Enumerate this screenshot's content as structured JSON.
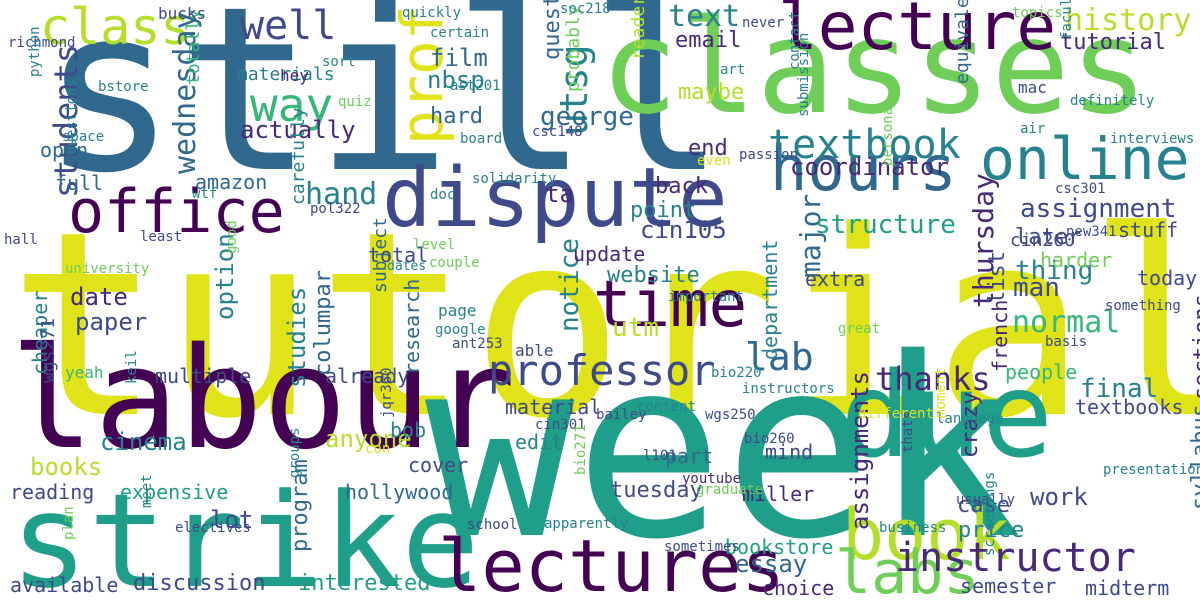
{
  "palette": {
    "c1": "#440154",
    "c2": "#482878",
    "c3": "#3e4a89",
    "c4": "#31688e",
    "c5": "#26828e",
    "c6": "#1f9e89",
    "c7": "#35b779",
    "c8": "#6ece58",
    "c9": "#b5de2b",
    "c10": "#dfe318"
  },
  "words": [
    {
      "text": "tutorials",
      "color": "c10"
    },
    {
      "text": "still",
      "color": "c4"
    },
    {
      "text": "week",
      "color": "c6"
    },
    {
      "text": "classes",
      "color": "c8"
    },
    {
      "text": "labour",
      "color": "c1"
    },
    {
      "text": "strike",
      "color": "c6"
    },
    {
      "text": "due",
      "color": "c6"
    },
    {
      "text": "dispute",
      "color": "c3"
    },
    {
      "text": "lectures",
      "color": "c1"
    },
    {
      "text": "lecture",
      "color": "c1"
    },
    {
      "text": "office",
      "color": "c1"
    },
    {
      "text": "online",
      "color": "c5"
    },
    {
      "text": "hours",
      "color": "c4"
    },
    {
      "text": "time",
      "color": "c1"
    },
    {
      "text": "book",
      "color": "c9"
    },
    {
      "text": "labs",
      "color": "c8"
    },
    {
      "text": "professor",
      "color": "c3"
    },
    {
      "text": "textbook",
      "color": "c5"
    },
    {
      "text": "prof",
      "color": "c10"
    },
    {
      "text": "instructor",
      "color": "c2"
    },
    {
      "text": "class",
      "color": "c9"
    },
    {
      "text": "way",
      "color": "c7"
    },
    {
      "text": "well",
      "color": "c3"
    },
    {
      "text": "utsg",
      "color": "c5"
    },
    {
      "text": "thanks",
      "color": "c2"
    },
    {
      "text": "lab",
      "color": "c4"
    },
    {
      "text": "history",
      "color": "c9"
    },
    {
      "text": "text",
      "color": "c5"
    },
    {
      "text": "students",
      "color": "c3"
    },
    {
      "text": "wednesday",
      "color": "c4"
    },
    {
      "text": "george",
      "color": "c4"
    },
    {
      "text": "email",
      "color": "c2"
    },
    {
      "text": "tutorial",
      "color": "c2"
    },
    {
      "text": "assignment",
      "color": "c3"
    },
    {
      "text": "normal",
      "color": "c7"
    },
    {
      "text": "thursday",
      "color": "c2"
    },
    {
      "text": "major",
      "color": "c4"
    },
    {
      "text": "coordinator",
      "color": "c2"
    },
    {
      "text": "structure",
      "color": "c6"
    },
    {
      "text": "hand",
      "color": "c5"
    },
    {
      "text": "actually",
      "color": "c2"
    },
    {
      "text": "question",
      "color": "c4"
    },
    {
      "text": "maybe",
      "color": "c9"
    },
    {
      "text": "hard",
      "color": "c4"
    },
    {
      "text": "film",
      "color": "c4"
    },
    {
      "text": "nbsp",
      "color": "c5"
    },
    {
      "text": "ta",
      "color": "c2"
    },
    {
      "text": "end",
      "color": "c2"
    },
    {
      "text": "back",
      "color": "c2"
    },
    {
      "text": "point",
      "color": "c5"
    },
    {
      "text": "notice",
      "color": "c5"
    },
    {
      "text": "cin105",
      "color": "c3"
    },
    {
      "text": "website",
      "color": "c5"
    },
    {
      "text": "utm",
      "color": "c9"
    },
    {
      "text": "date",
      "color": "c2"
    },
    {
      "text": "paper",
      "color": "c3"
    },
    {
      "text": "option",
      "color": "c5"
    },
    {
      "text": "studies",
      "color": "c5"
    },
    {
      "text": "columpar",
      "color": "c4"
    },
    {
      "text": "anyone",
      "color": "c9"
    },
    {
      "text": "cinema",
      "color": "c5"
    },
    {
      "text": "books",
      "color": "c9"
    },
    {
      "text": "final",
      "color": "c5"
    },
    {
      "text": "thing",
      "color": "c5"
    },
    {
      "text": "man",
      "color": "c3"
    },
    {
      "text": "later",
      "color": "c3"
    },
    {
      "text": "list",
      "color": "c3"
    },
    {
      "text": "work",
      "color": "c3"
    },
    {
      "text": "tuesday",
      "color": "c3"
    },
    {
      "text": "essay",
      "color": "c4"
    },
    {
      "text": "program",
      "color": "c4"
    },
    {
      "text": "lot",
      "color": "c3"
    },
    {
      "text": "discussion",
      "color": "c3"
    },
    {
      "text": "interested",
      "color": "c6"
    },
    {
      "text": "assignments",
      "color": "c2"
    },
    {
      "text": "miller",
      "color": "c2"
    },
    {
      "text": "mind",
      "color": "c3"
    },
    {
      "text": "bookstore",
      "color": "c6"
    },
    {
      "text": "choice",
      "color": "c2"
    },
    {
      "text": "crazy",
      "color": "c2"
    },
    {
      "text": "case",
      "color": "c3"
    },
    {
      "text": "price",
      "color": "c5"
    },
    {
      "text": "semester",
      "color": "c3"
    },
    {
      "text": "midterm",
      "color": "c3"
    },
    {
      "text": "textbooks",
      "color": "c3"
    },
    {
      "text": "syllabus",
      "color": "c4"
    },
    {
      "text": "sections",
      "color": "c2"
    },
    {
      "text": "french",
      "color": "c2"
    },
    {
      "text": "department",
      "color": "c5"
    },
    {
      "text": "research",
      "color": "c4"
    },
    {
      "text": "update",
      "color": "c2"
    },
    {
      "text": "extra",
      "color": "c3"
    },
    {
      "text": "multiple",
      "color": "c3"
    },
    {
      "text": "already",
      "color": "c3"
    },
    {
      "text": "total",
      "color": "c3"
    },
    {
      "text": "full",
      "color": "c4"
    },
    {
      "text": "open",
      "color": "c4"
    },
    {
      "text": "amazon",
      "color": "c4"
    },
    {
      "text": "expensive",
      "color": "c6"
    },
    {
      "text": "reading",
      "color": "c3"
    },
    {
      "text": "available",
      "color": "c3"
    },
    {
      "text": "cheaper",
      "color": "c5"
    },
    {
      "text": "hollywood",
      "color": "c4"
    },
    {
      "text": "edit",
      "color": "c5"
    },
    {
      "text": "bob",
      "color": "c5"
    },
    {
      "text": "cover",
      "color": "c3"
    },
    {
      "text": "material",
      "color": "c3"
    },
    {
      "text": "part",
      "color": "c4"
    },
    {
      "text": "people",
      "color": "c7"
    },
    {
      "text": "stuff",
      "color": "c3"
    },
    {
      "text": "harder",
      "color": "c8"
    },
    {
      "text": "today",
      "color": "c3"
    },
    {
      "text": "cin260",
      "color": "c3"
    },
    {
      "text": "materials",
      "color": "c5"
    },
    {
      "text": "totally",
      "color": "c7"
    },
    {
      "text": "carefully",
      "color": "c5"
    },
    {
      "text": "probably",
      "color": "c8"
    },
    {
      "text": "readers",
      "color": "c9"
    },
    {
      "text": "subject",
      "color": "c4"
    },
    {
      "text": "page",
      "color": "c5"
    },
    {
      "text": "able",
      "color": "c3"
    },
    {
      "text": "wgs271",
      "color": "c3"
    },
    {
      "text": "yeah",
      "color": "c7"
    },
    {
      "text": "equivalent",
      "color": "c4"
    },
    {
      "text": "definitely",
      "color": "c5"
    },
    {
      "text": "mac",
      "color": "c3"
    },
    {
      "text": "bucks",
      "color": "c3"
    },
    {
      "text": "hey",
      "color": "c2"
    },
    {
      "text": "richmond",
      "color": "c3"
    },
    {
      "text": "bstore",
      "color": "c5"
    },
    {
      "text": "python",
      "color": "c5"
    },
    {
      "text": "space",
      "color": "c5"
    },
    {
      "text": "questions",
      "color": "c5"
    },
    {
      "text": "hall",
      "color": "c3"
    },
    {
      "text": "least",
      "color": "c3"
    },
    {
      "text": "university",
      "color": "c8"
    },
    {
      "text": "good",
      "color": "c8"
    },
    {
      "text": "soc218",
      "color": "c5"
    },
    {
      "text": "sort",
      "color": "c5"
    },
    {
      "text": "quickly",
      "color": "c5"
    },
    {
      "text": "certain",
      "color": "c5"
    },
    {
      "text": "ast201",
      "color": "c5"
    },
    {
      "text": "quiz",
      "color": "c8"
    },
    {
      "text": "board",
      "color": "c5"
    },
    {
      "text": "csc148",
      "color": "c3"
    },
    {
      "text": "wtf",
      "color": "c5"
    },
    {
      "text": "pol322",
      "color": "c3"
    },
    {
      "text": "solidarity",
      "color": "c5"
    },
    {
      "text": "doc",
      "color": "c5"
    },
    {
      "text": "level",
      "color": "c8"
    },
    {
      "text": "dates",
      "color": "c5"
    },
    {
      "text": "couple",
      "color": "c8"
    },
    {
      "text": "passion",
      "color": "c3"
    },
    {
      "text": "even",
      "color": "c10"
    },
    {
      "text": "art",
      "color": "c5"
    },
    {
      "text": "contact",
      "color": "c5"
    },
    {
      "text": "submission",
      "color": "c5"
    },
    {
      "text": "personal",
      "color": "c8"
    },
    {
      "text": "never",
      "color": "c3"
    },
    {
      "text": "topics",
      "color": "c8"
    },
    {
      "text": "faculty",
      "color": "c5"
    },
    {
      "text": "air",
      "color": "c5"
    },
    {
      "text": "interviews",
      "color": "c5"
    },
    {
      "text": "csc301",
      "color": "c3"
    },
    {
      "text": "new341",
      "color": "c3"
    },
    {
      "text": "something",
      "color": "c3"
    },
    {
      "text": "basis",
      "color": "c3"
    },
    {
      "text": "google",
      "color": "c5"
    },
    {
      "text": "important",
      "color": "c5"
    },
    {
      "text": "ant253",
      "color": "c3"
    },
    {
      "text": "great",
      "color": "c8"
    },
    {
      "text": "bio220",
      "color": "c5"
    },
    {
      "text": "instructors",
      "color": "c5"
    },
    {
      "text": "thats",
      "color": "c3"
    },
    {
      "text": "content",
      "color": "c5"
    },
    {
      "text": "bailey",
      "color": "c3"
    },
    {
      "text": "different",
      "color": "c10"
    },
    {
      "text": "language",
      "color": "c5"
    },
    {
      "text": "moment",
      "color": "c10"
    },
    {
      "text": "usually",
      "color": "c3"
    },
    {
      "text": "presentations",
      "color": "c5"
    },
    {
      "text": "screenings",
      "color": "c5"
    },
    {
      "text": "keil",
      "color": "c5"
    },
    {
      "text": "jqr360",
      "color": "c3"
    },
    {
      "text": "con",
      "color": "c10"
    },
    {
      "text": "cin301",
      "color": "c3"
    },
    {
      "text": "wgs250",
      "color": "c3"
    },
    {
      "text": "bio260",
      "color": "c3"
    },
    {
      "text": "l101",
      "color": "c3"
    },
    {
      "text": "youtube",
      "color": "c2"
    },
    {
      "text": "graduate",
      "color": "c8"
    },
    {
      "text": "sometimes",
      "color": "c3"
    },
    {
      "text": "bio271",
      "color": "c8"
    },
    {
      "text": "school",
      "color": "c3"
    },
    {
      "text": "apparently",
      "color": "c5"
    },
    {
      "text": "plan",
      "color": "c8"
    },
    {
      "text": "groups",
      "color": "c5"
    },
    {
      "text": "meet",
      "color": "c5"
    },
    {
      "text": "electives",
      "color": "c3"
    },
    {
      "text": "business",
      "color": "c5"
    }
  ]
}
